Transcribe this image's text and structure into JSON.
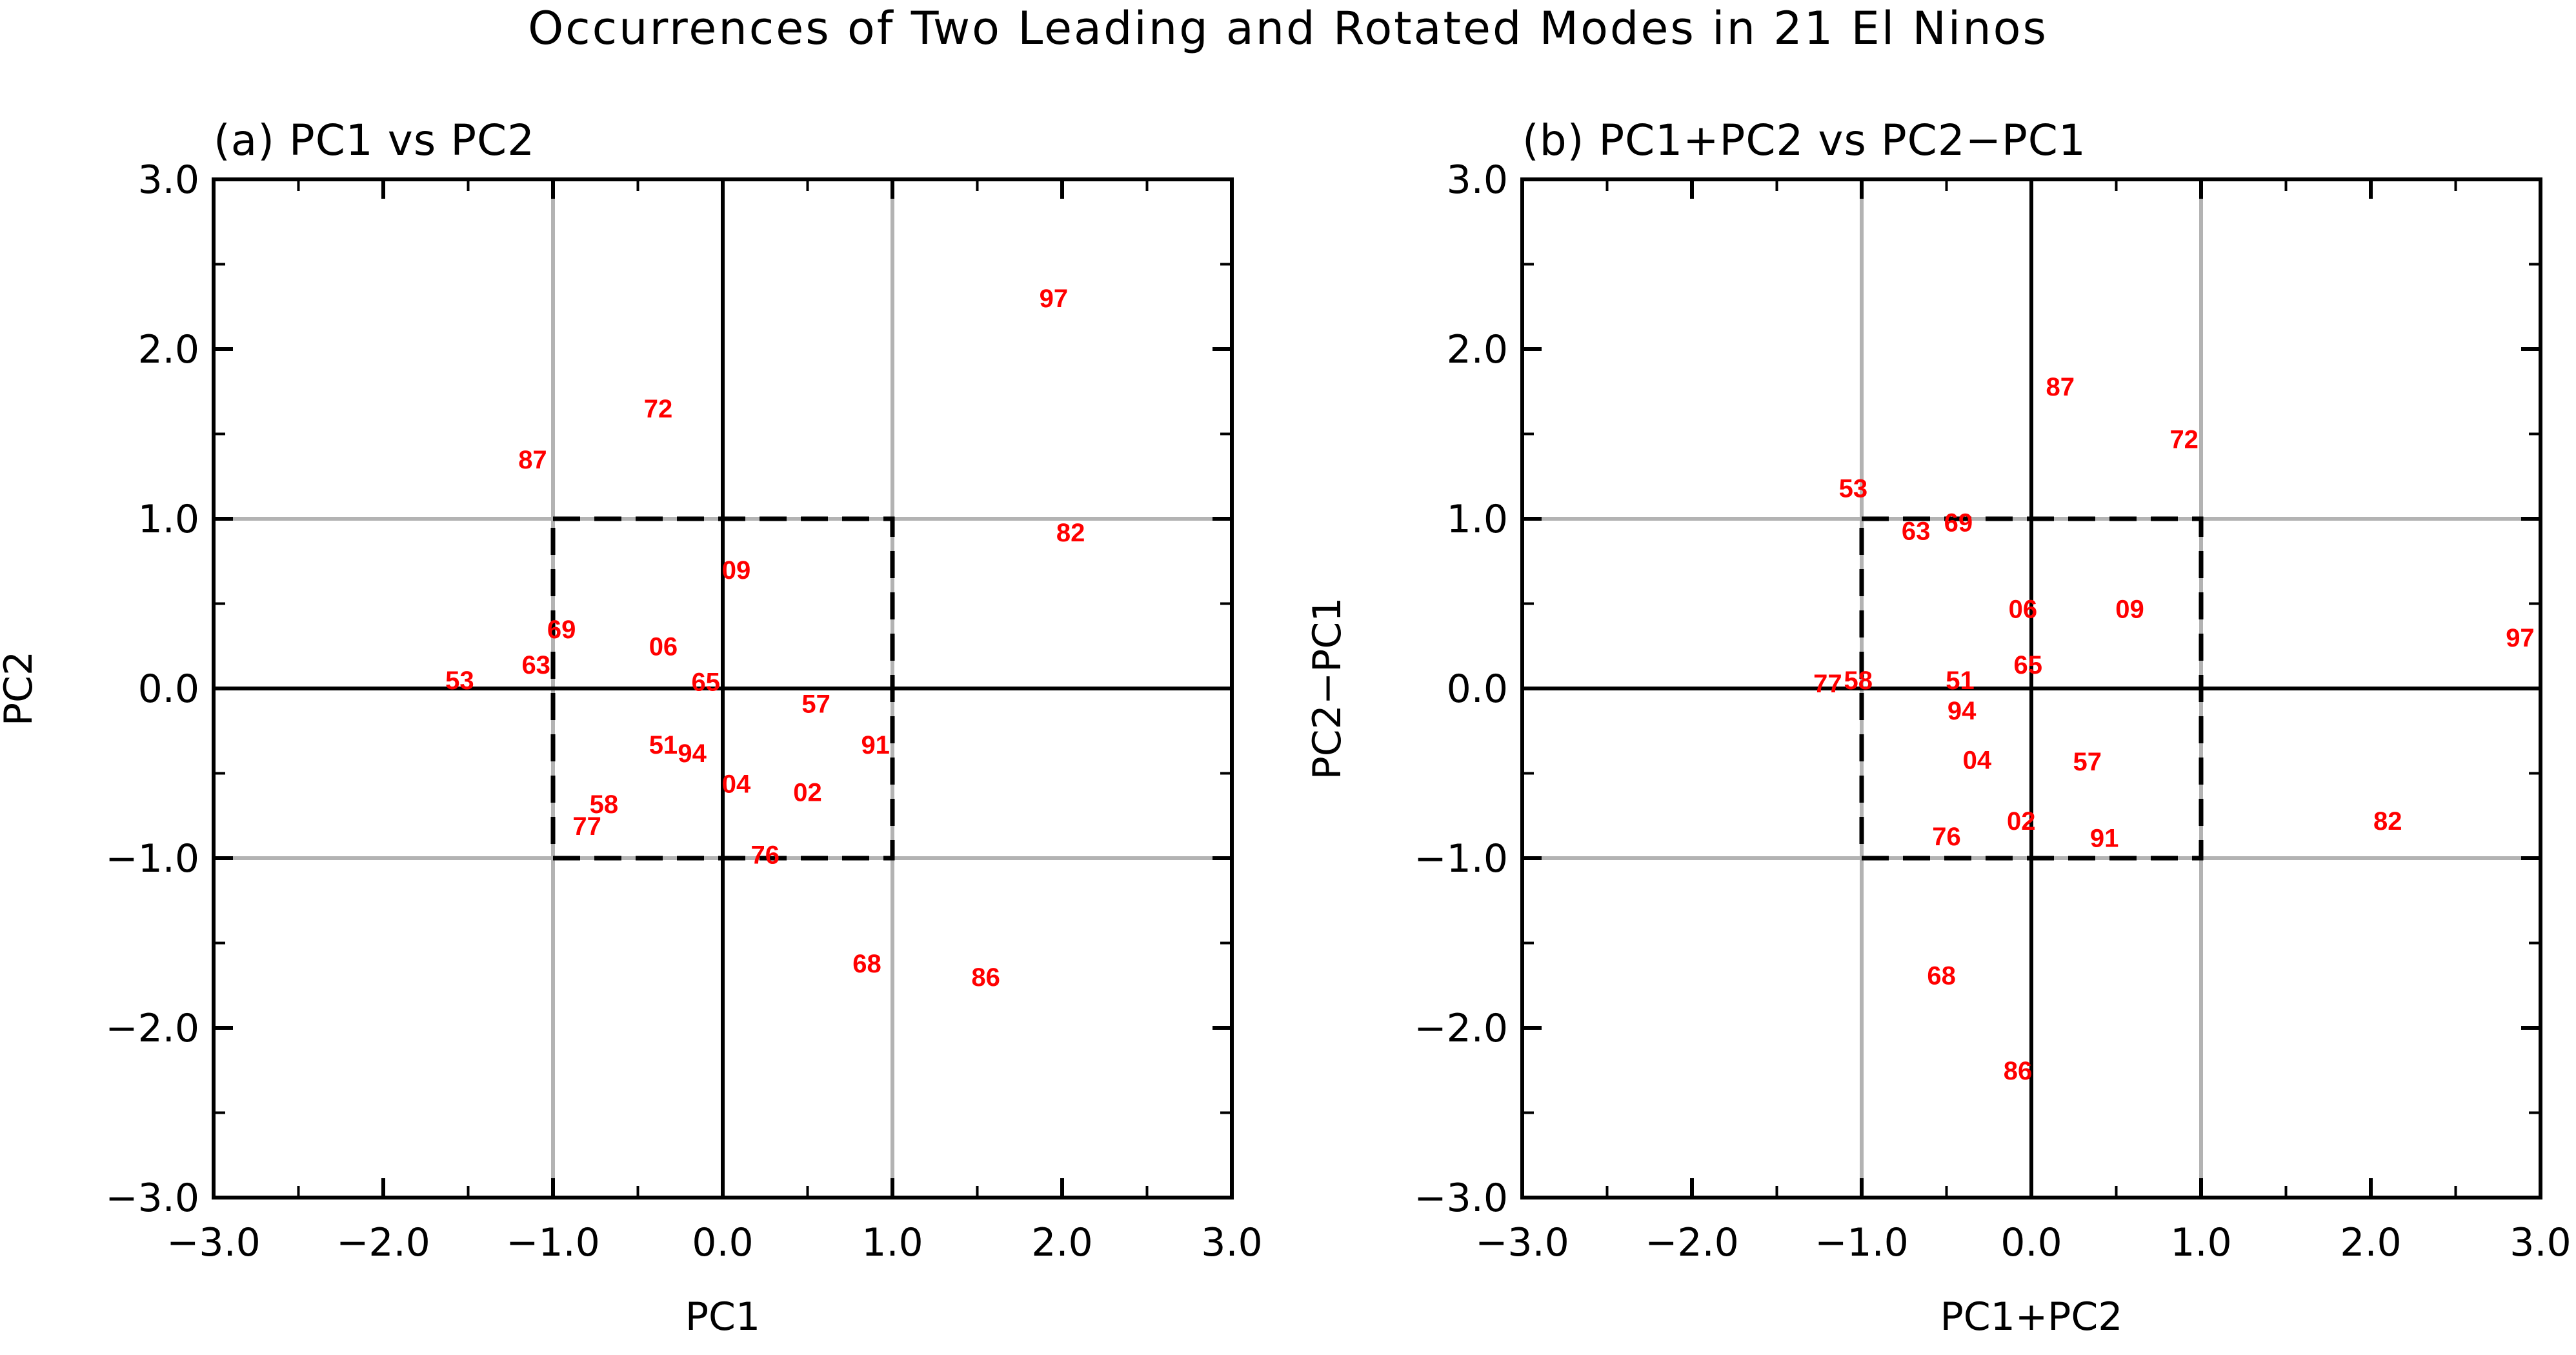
{
  "title": "Occurrences of Two Leading and Rotated Modes in 21 El Ninos",
  "chart_data": [
    {
      "type": "scatter",
      "panel_title": "(a) PC1 vs PC2",
      "xlabel": "PC1",
      "ylabel": "PC2",
      "xlim": [
        -3,
        3
      ],
      "ylim": [
        -3,
        3
      ],
      "major_ticks": [
        -3,
        -2,
        -1,
        0,
        1,
        2,
        3
      ],
      "tick_labels": [
        "−3.0",
        "−2.0",
        "−1.0",
        "0.0",
        "1.0",
        "2.0",
        "3.0"
      ],
      "points": [
        {
          "label": "97",
          "x": 1.95,
          "y": 2.3
        },
        {
          "label": "72",
          "x": -0.38,
          "y": 1.65
        },
        {
          "label": "87",
          "x": -1.12,
          "y": 1.35
        },
        {
          "label": "82",
          "x": 2.05,
          "y": 0.92
        },
        {
          "label": "09",
          "x": 0.08,
          "y": 0.7
        },
        {
          "label": "69",
          "x": -0.95,
          "y": 0.35
        },
        {
          "label": "06",
          "x": -0.35,
          "y": 0.25
        },
        {
          "label": "53",
          "x": -1.55,
          "y": 0.05
        },
        {
          "label": "63",
          "x": -1.1,
          "y": 0.14
        },
        {
          "label": "65",
          "x": -0.1,
          "y": 0.04
        },
        {
          "label": "57",
          "x": 0.55,
          "y": -0.09
        },
        {
          "label": "51",
          "x": -0.35,
          "y": -0.33
        },
        {
          "label": "94",
          "x": -0.18,
          "y": -0.38
        },
        {
          "label": "91",
          "x": 0.9,
          "y": -0.33
        },
        {
          "label": "04",
          "x": 0.08,
          "y": -0.56
        },
        {
          "label": "02",
          "x": 0.5,
          "y": -0.61
        },
        {
          "label": "58",
          "x": -0.7,
          "y": -0.68
        },
        {
          "label": "77",
          "x": -0.8,
          "y": -0.81
        },
        {
          "label": "76",
          "x": 0.25,
          "y": -0.98
        },
        {
          "label": "68",
          "x": 0.85,
          "y": -1.62
        },
        {
          "label": "86",
          "x": 1.55,
          "y": -1.7
        }
      ],
      "dashed_box": {
        "xmin": -1,
        "xmax": 1,
        "ymin": -1,
        "ymax": 1
      },
      "gridlines": [
        -1,
        1
      ],
      "zero_lines": true
    },
    {
      "type": "scatter",
      "panel_title": "(b) PC1+PC2 vs PC2−PC1",
      "xlabel": "PC1+PC2",
      "ylabel": "PC2−PC1",
      "xlim": [
        -3,
        3
      ],
      "ylim": [
        -3,
        3
      ],
      "major_ticks": [
        -3,
        -2,
        -1,
        0,
        1,
        2,
        3
      ],
      "tick_labels": [
        "−3.0",
        "−2.0",
        "−1.0",
        "0.0",
        "1.0",
        "2.0",
        "3.0"
      ],
      "points": [
        {
          "label": "87",
          "x": 0.17,
          "y": 1.78
        },
        {
          "label": "72",
          "x": 0.9,
          "y": 1.47
        },
        {
          "label": "53",
          "x": -1.05,
          "y": 1.18
        },
        {
          "label": "63",
          "x": -0.68,
          "y": 0.93
        },
        {
          "label": "69",
          "x": -0.43,
          "y": 0.98
        },
        {
          "label": "06",
          "x": -0.05,
          "y": 0.47
        },
        {
          "label": "09",
          "x": 0.58,
          "y": 0.47
        },
        {
          "label": "97",
          "x": 2.88,
          "y": 0.3
        },
        {
          "label": "77",
          "x": -1.2,
          "y": 0.03
        },
        {
          "label": "58",
          "x": -1.02,
          "y": 0.05
        },
        {
          "label": "51",
          "x": -0.42,
          "y": 0.05
        },
        {
          "label": "65",
          "x": -0.02,
          "y": 0.14
        },
        {
          "label": "94",
          "x": -0.41,
          "y": -0.13
        },
        {
          "label": "04",
          "x": -0.32,
          "y": -0.42
        },
        {
          "label": "57",
          "x": 0.33,
          "y": -0.43
        },
        {
          "label": "82",
          "x": 2.1,
          "y": -0.78
        },
        {
          "label": "76",
          "x": -0.5,
          "y": -0.87
        },
        {
          "label": "02",
          "x": -0.06,
          "y": -0.78
        },
        {
          "label": "91",
          "x": 0.43,
          "y": -0.88
        },
        {
          "label": "68",
          "x": -0.53,
          "y": -1.69
        },
        {
          "label": "86",
          "x": -0.08,
          "y": -2.25
        }
      ],
      "dashed_box": {
        "xmin": -1,
        "xmax": 1,
        "ymin": -1,
        "ymax": 1
      },
      "gridlines": [
        -1,
        1
      ],
      "zero_lines": true
    }
  ]
}
